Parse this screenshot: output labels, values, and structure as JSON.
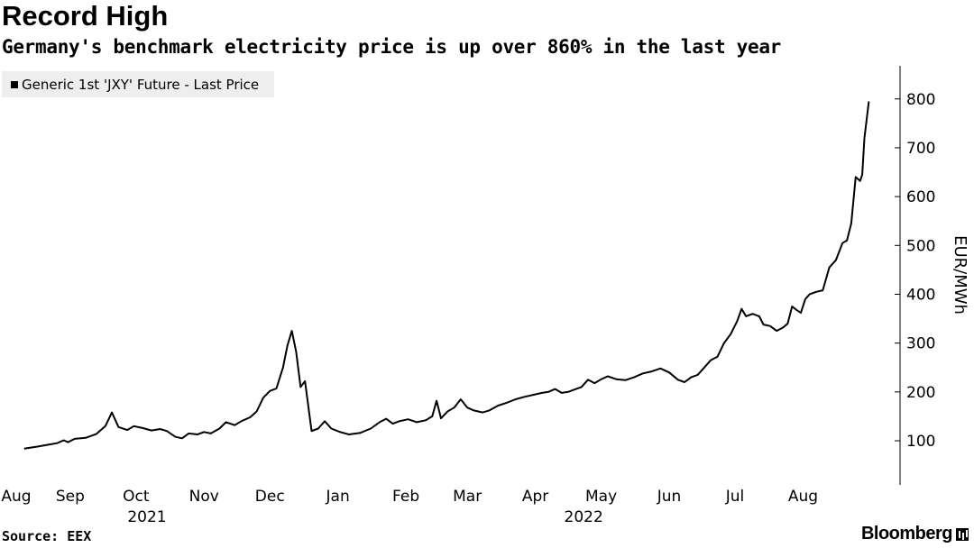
{
  "title": "Record High",
  "subtitle": "Germany's benchmark electricity price is up over 860% in the last year",
  "source": "Source: EEX",
  "brand": "Bloomberg",
  "chart_data": {
    "type": "line",
    "title": "Record High",
    "subtitle": "Germany's benchmark electricity price is up over 860% in the last year",
    "ylabel": "EUR/MWh",
    "ylim": [
      40,
      820
    ],
    "yticks": [
      100,
      200,
      300,
      400,
      500,
      600,
      700,
      800
    ],
    "y_axis_position": "right",
    "grid": false,
    "legend_position": "top-left",
    "x_month_labels": [
      "Aug",
      "Sep",
      "Oct",
      "Nov",
      "Dec",
      "Jan",
      "Feb",
      "Mar",
      "Apr",
      "May",
      "Jun",
      "Jul",
      "Aug"
    ],
    "x_year_labels": [
      "2021",
      "2022"
    ],
    "series": [
      {
        "name": "Generic 1st 'JXY' Future - Last Price",
        "color": "#000000",
        "points": [
          [
            "2021-08-25",
            84
          ],
          [
            "2021-08-31",
            88
          ],
          [
            "2021-09-05",
            92
          ],
          [
            "2021-09-09",
            95
          ],
          [
            "2021-09-12",
            101
          ],
          [
            "2021-09-14",
            97
          ],
          [
            "2021-09-17",
            104
          ],
          [
            "2021-09-22",
            106
          ],
          [
            "2021-09-27",
            114
          ],
          [
            "2021-10-01",
            130
          ],
          [
            "2021-10-04",
            158
          ],
          [
            "2021-10-07",
            128
          ],
          [
            "2021-10-11",
            122
          ],
          [
            "2021-10-14",
            130
          ],
          [
            "2021-10-18",
            126
          ],
          [
            "2021-10-22",
            121
          ],
          [
            "2021-10-26",
            124
          ],
          [
            "2021-10-29",
            120
          ],
          [
            "2021-11-02",
            108
          ],
          [
            "2021-11-05",
            105
          ],
          [
            "2021-11-08",
            115
          ],
          [
            "2021-11-12",
            113
          ],
          [
            "2021-11-15",
            118
          ],
          [
            "2021-11-18",
            115
          ],
          [
            "2021-11-22",
            125
          ],
          [
            "2021-11-25",
            138
          ],
          [
            "2021-11-29",
            132
          ],
          [
            "2021-12-02",
            140
          ],
          [
            "2021-12-06",
            148
          ],
          [
            "2021-12-09",
            160
          ],
          [
            "2021-12-12",
            188
          ],
          [
            "2021-12-15",
            202
          ],
          [
            "2021-12-18",
            207
          ],
          [
            "2021-12-21",
            250
          ],
          [
            "2021-12-23",
            295
          ],
          [
            "2021-12-25",
            325
          ],
          [
            "2021-12-27",
            282
          ],
          [
            "2021-12-29",
            210
          ],
          [
            "2021-12-31",
            222
          ],
          [
            "2022-01-03",
            120
          ],
          [
            "2022-01-06",
            125
          ],
          [
            "2022-01-09",
            140
          ],
          [
            "2022-01-12",
            125
          ],
          [
            "2022-01-16",
            118
          ],
          [
            "2022-01-20",
            113
          ],
          [
            "2022-01-25",
            116
          ],
          [
            "2022-01-30",
            125
          ],
          [
            "2022-02-03",
            138
          ],
          [
            "2022-02-06",
            145
          ],
          [
            "2022-02-09",
            135
          ],
          [
            "2022-02-12",
            140
          ],
          [
            "2022-02-16",
            144
          ],
          [
            "2022-02-20",
            138
          ],
          [
            "2022-02-24",
            142
          ],
          [
            "2022-02-27",
            150
          ],
          [
            "2022-03-01",
            182
          ],
          [
            "2022-03-03",
            146
          ],
          [
            "2022-03-06",
            160
          ],
          [
            "2022-03-09",
            168
          ],
          [
            "2022-03-12",
            185
          ],
          [
            "2022-03-15",
            168
          ],
          [
            "2022-03-18",
            162
          ],
          [
            "2022-03-22",
            158
          ],
          [
            "2022-03-25",
            162
          ],
          [
            "2022-03-29",
            172
          ],
          [
            "2022-04-02",
            178
          ],
          [
            "2022-04-06",
            185
          ],
          [
            "2022-04-10",
            190
          ],
          [
            "2022-04-14",
            194
          ],
          [
            "2022-04-18",
            198
          ],
          [
            "2022-04-21",
            200
          ],
          [
            "2022-04-24",
            206
          ],
          [
            "2022-04-27",
            198
          ],
          [
            "2022-04-30",
            200
          ],
          [
            "2022-05-03",
            205
          ],
          [
            "2022-05-06",
            210
          ],
          [
            "2022-05-09",
            225
          ],
          [
            "2022-05-12",
            218
          ],
          [
            "2022-05-15",
            226
          ],
          [
            "2022-05-18",
            232
          ],
          [
            "2022-05-22",
            226
          ],
          [
            "2022-05-26",
            224
          ],
          [
            "2022-05-30",
            230
          ],
          [
            "2022-06-03",
            238
          ],
          [
            "2022-06-07",
            242
          ],
          [
            "2022-06-11",
            248
          ],
          [
            "2022-06-15",
            240
          ],
          [
            "2022-06-19",
            225
          ],
          [
            "2022-06-22",
            220
          ],
          [
            "2022-06-25",
            230
          ],
          [
            "2022-06-28",
            235
          ],
          [
            "2022-07-01",
            250
          ],
          [
            "2022-07-04",
            265
          ],
          [
            "2022-07-07",
            272
          ],
          [
            "2022-07-10",
            300
          ],
          [
            "2022-07-13",
            318
          ],
          [
            "2022-07-16",
            345
          ],
          [
            "2022-07-18",
            370
          ],
          [
            "2022-07-20",
            355
          ],
          [
            "2022-07-23",
            360
          ],
          [
            "2022-07-26",
            355
          ],
          [
            "2022-07-28",
            338
          ],
          [
            "2022-07-31",
            335
          ],
          [
            "2022-08-03",
            325
          ],
          [
            "2022-08-06",
            332
          ],
          [
            "2022-08-08",
            340
          ],
          [
            "2022-08-10",
            375
          ],
          [
            "2022-08-12",
            368
          ],
          [
            "2022-08-14",
            362
          ],
          [
            "2022-08-16",
            390
          ],
          [
            "2022-08-18",
            400
          ],
          [
            "2022-08-21",
            405
          ],
          [
            "2022-08-24",
            408
          ],
          [
            "2022-08-27",
            455
          ],
          [
            "2022-08-30",
            470
          ],
          [
            "2022-09-02",
            505
          ],
          [
            "2022-09-04",
            510
          ],
          [
            "2022-09-06",
            545
          ],
          [
            "2022-09-08",
            640
          ],
          [
            "2022-09-10",
            632
          ],
          [
            "2022-09-11",
            645
          ],
          [
            "2022-09-12",
            720
          ],
          [
            "2022-09-14",
            795
          ]
        ]
      }
    ]
  }
}
